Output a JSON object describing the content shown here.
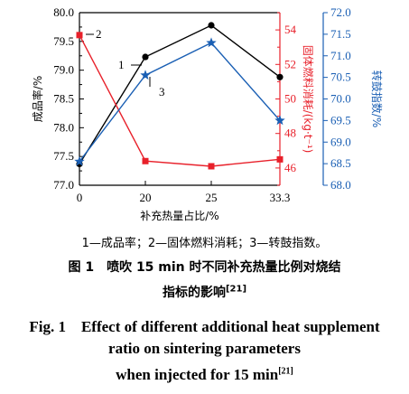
{
  "chart_data": {
    "type": "line",
    "categories": [
      "0",
      "20",
      "25",
      "33.3"
    ],
    "x_label": "补充热量占比/%",
    "y_left": {
      "label": "成品率/%",
      "ylim": [
        77.0,
        80.0
      ],
      "ticks": [
        "77.0",
        "77.5",
        "78.0",
        "78.5",
        "79.0",
        "79.5",
        "80.0"
      ],
      "color": "#000000"
    },
    "y_right1": {
      "label": "固体燃料消耗/(kg·t⁻¹)",
      "ylim": [
        45,
        55
      ],
      "ticks": [
        "46",
        "48",
        "50",
        "52",
        "54"
      ],
      "color": "#e8202a"
    },
    "y_right2": {
      "label": "转鼓指数/%",
      "ylim": [
        68.0,
        72.0
      ],
      "ticks": [
        "68.0",
        "68.5",
        "69.0",
        "69.5",
        "70.0",
        "70.5",
        "71.0",
        "71.5",
        "72.0"
      ],
      "color": "#1a5fb4"
    },
    "series": [
      {
        "name": "1",
        "axis": "y_left",
        "marker": "circle",
        "color": "#000000",
        "values": [
          77.37,
          79.23,
          79.78,
          78.88
        ]
      },
      {
        "name": "2",
        "axis": "y_right1",
        "marker": "square",
        "color": "#e8202a",
        "values": [
          53.7,
          46.4,
          46.1,
          46.5
        ]
      },
      {
        "name": "3",
        "axis": "y_right2",
        "marker": "star",
        "color": "#1a5fb4",
        "values": [
          68.55,
          70.55,
          71.3,
          69.5
        ]
      }
    ],
    "annotations": [
      "1",
      "2",
      "3"
    ]
  },
  "legend_text": "1—成品率；2—固体燃料消耗；3—转鼓指数。",
  "caption_zh_line1": "图 1　喷吹 15 min 时不同补充热量比例对烧结",
  "caption_zh_line2": "指标的影响",
  "caption_en_line1": "Fig. 1　Effect of different additional heat supplement",
  "caption_en_line2": "ratio on sintering parameters",
  "caption_en_line3": "when injected for 15 min",
  "ref_mark": "[21]"
}
